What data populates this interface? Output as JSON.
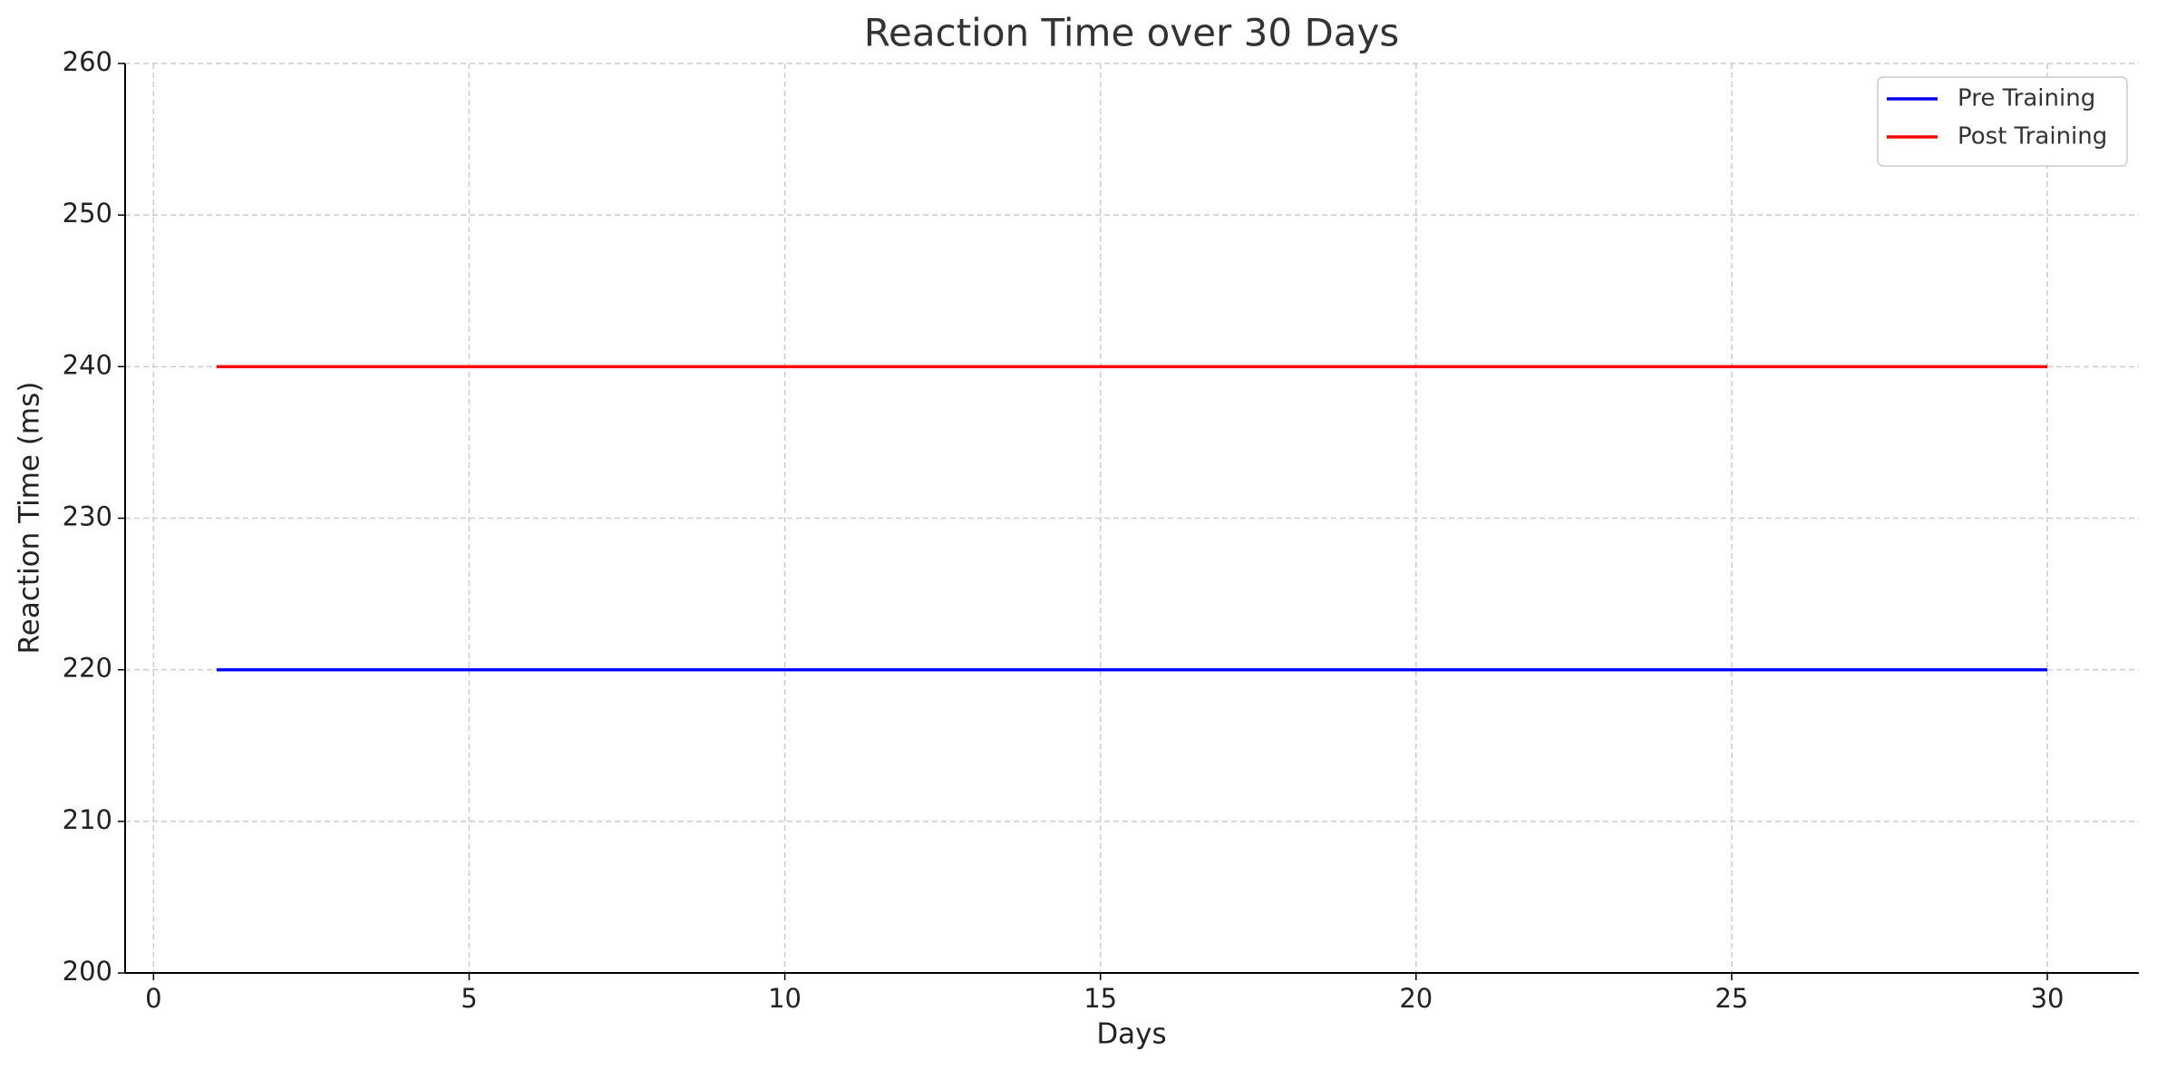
{
  "chart_data": {
    "type": "line",
    "title": "Reaction Time over 30 Days",
    "xlabel": "Days",
    "ylabel": "Reaction Time (ms)",
    "x": [
      1,
      2,
      3,
      4,
      5,
      6,
      7,
      8,
      9,
      10,
      11,
      12,
      13,
      14,
      15,
      16,
      17,
      18,
      19,
      20,
      21,
      22,
      23,
      24,
      25,
      26,
      27,
      28,
      29,
      30
    ],
    "series": [
      {
        "name": "Pre Training",
        "color": "#0000ff",
        "values": [
          220,
          220,
          220,
          220,
          220,
          220,
          220,
          220,
          220,
          220,
          220,
          220,
          220,
          220,
          220,
          220,
          220,
          220,
          220,
          220,
          220,
          220,
          220,
          220,
          220,
          220,
          220,
          220,
          220,
          220
        ]
      },
      {
        "name": "Post Training",
        "color": "#ff0000",
        "values": [
          240,
          240,
          240,
          240,
          240,
          240,
          240,
          240,
          240,
          240,
          240,
          240,
          240,
          240,
          240,
          240,
          240,
          240,
          240,
          240,
          240,
          240,
          240,
          240,
          240,
          240,
          240,
          240,
          240,
          240
        ]
      }
    ],
    "xlim": [
      -0.45,
      31.45
    ],
    "xticks": [
      0,
      5,
      10,
      15,
      20,
      25,
      30
    ],
    "ylim": [
      200,
      260
    ],
    "yticks": [
      200,
      210,
      220,
      230,
      240,
      250,
      260
    ],
    "grid": true,
    "legend": "upper right"
  }
}
